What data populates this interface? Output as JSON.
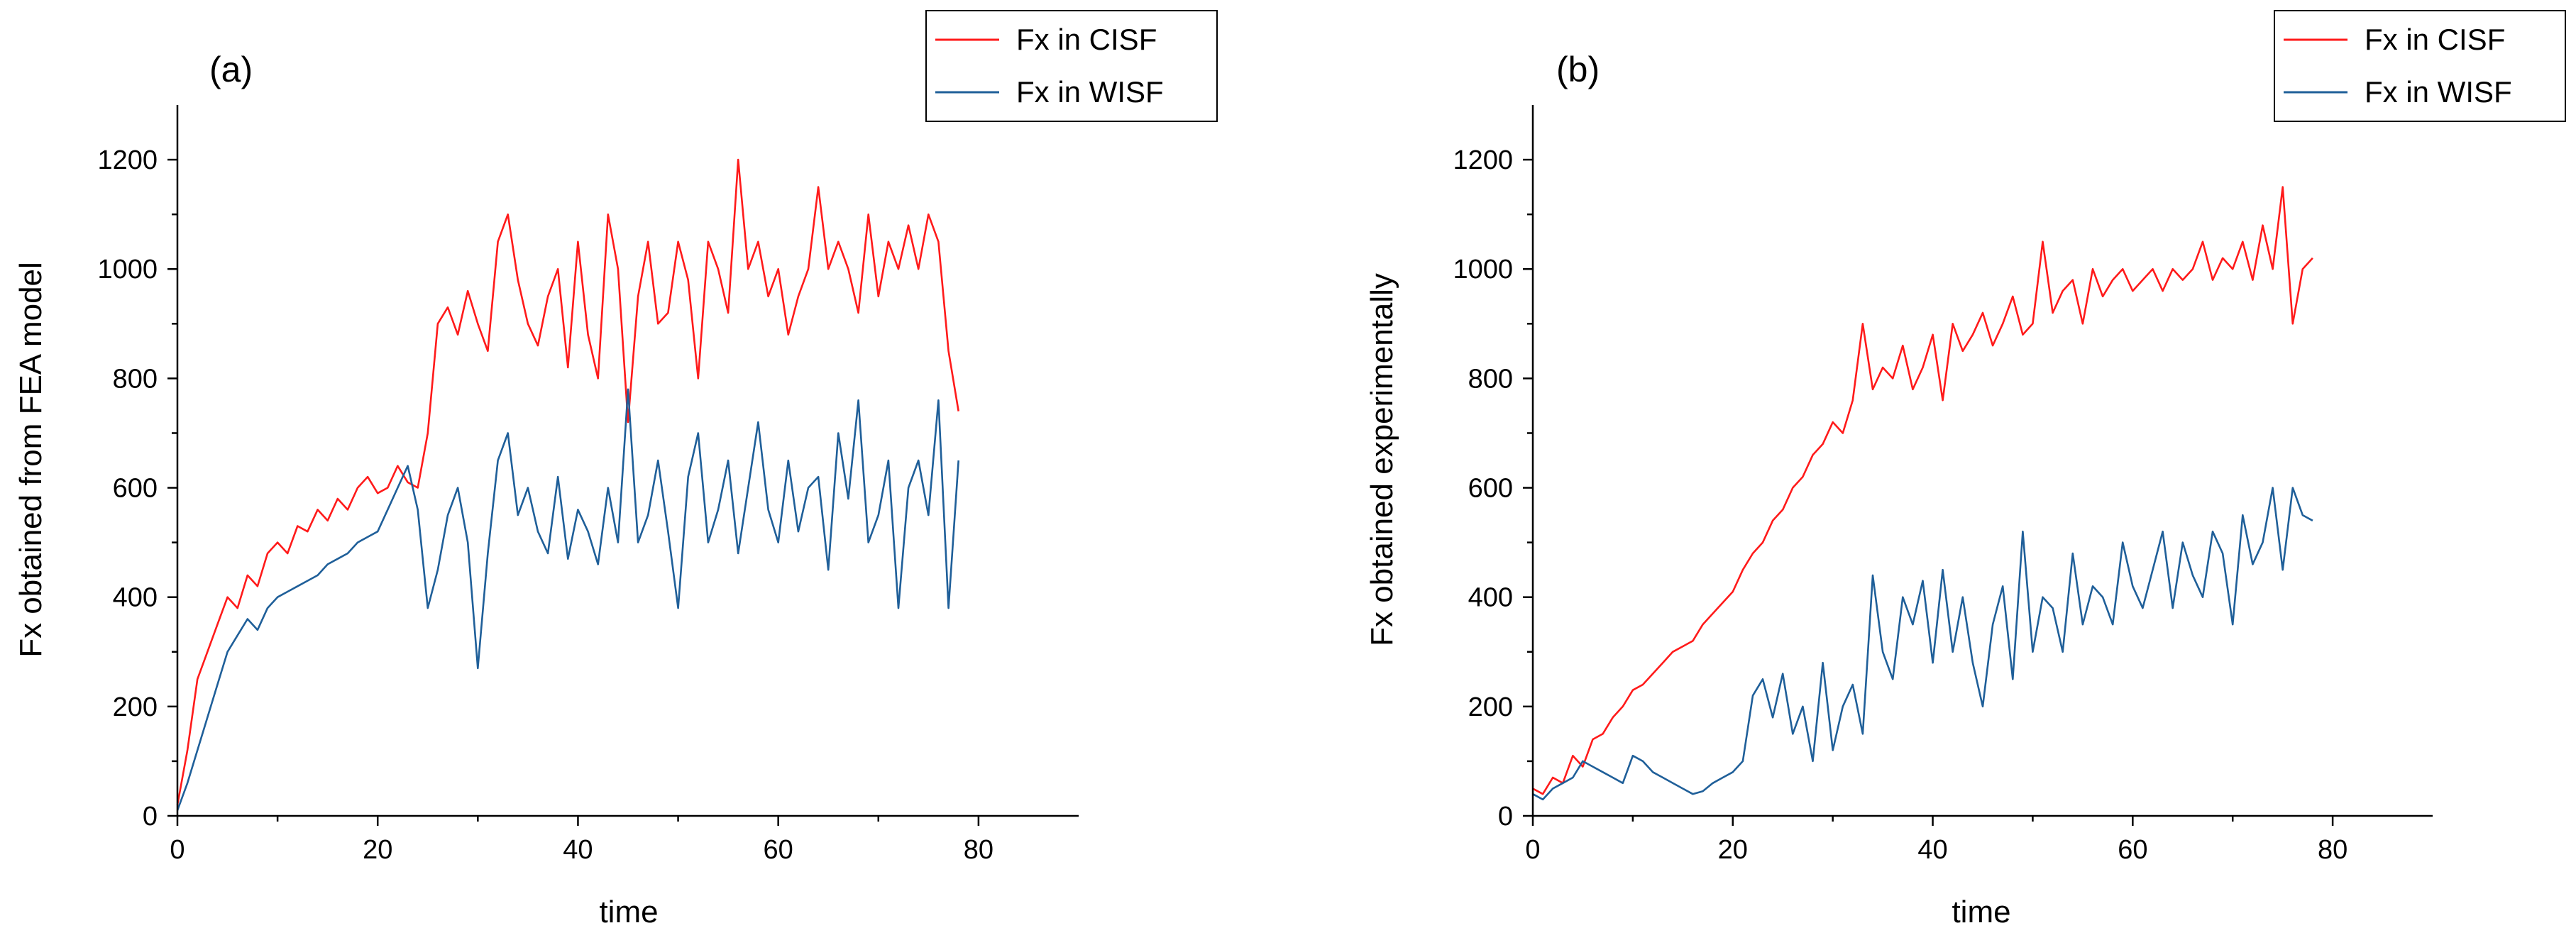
{
  "colors": {
    "cisf": "#ff1a1a",
    "wisf": "#1f5f99",
    "axis": "#000000",
    "background": "#ffffff"
  },
  "chart_data": [
    {
      "type": "line",
      "panel_label": "(a)",
      "title": "",
      "xlabel": "time",
      "ylabel": "Fx obtained from FEA model",
      "xlim": [
        0,
        90
      ],
      "ylim": [
        0,
        1300
      ],
      "xticks": [
        0,
        20,
        40,
        60,
        80
      ],
      "yticks": [
        0,
        200,
        400,
        600,
        800,
        1000,
        1200
      ],
      "grid": false,
      "legend_position": "top-right",
      "series": [
        {
          "name": "Fx in CISF",
          "color_key": "cisf",
          "x": [
            0,
            1,
            2,
            3,
            4,
            5,
            6,
            7,
            8,
            9,
            10,
            11,
            12,
            13,
            14,
            15,
            16,
            17,
            18,
            19,
            20,
            21,
            22,
            23,
            24,
            25,
            26,
            27,
            28,
            29,
            30,
            31,
            32,
            33,
            34,
            35,
            36,
            37,
            38,
            39,
            40,
            41,
            42,
            43,
            44,
            45,
            46,
            47,
            48,
            49,
            50,
            51,
            52,
            53,
            54,
            55,
            56,
            57,
            58,
            59,
            60,
            61,
            62,
            63,
            64,
            65,
            66,
            67,
            68,
            69,
            70,
            71,
            72,
            73,
            74,
            75,
            76,
            77,
            78
          ],
          "values": [
            20,
            120,
            250,
            300,
            350,
            400,
            380,
            440,
            420,
            480,
            500,
            480,
            530,
            520,
            560,
            540,
            580,
            560,
            600,
            620,
            590,
            600,
            640,
            610,
            600,
            700,
            900,
            930,
            880,
            960,
            900,
            850,
            1050,
            1100,
            980,
            900,
            860,
            950,
            1000,
            820,
            1050,
            880,
            800,
            1100,
            1000,
            720,
            950,
            1050,
            900,
            920,
            1050,
            980,
            800,
            1050,
            1000,
            920,
            1200,
            1000,
            1050,
            950,
            1000,
            880,
            950,
            1000,
            1150,
            1000,
            1050,
            1000,
            920,
            1100,
            950,
            1050,
            1000,
            1080,
            1000,
            1100,
            1050,
            850,
            740
          ]
        },
        {
          "name": "Fx in WISF",
          "color_key": "wisf",
          "x": [
            0,
            1,
            2,
            3,
            4,
            5,
            6,
            7,
            8,
            9,
            10,
            11,
            12,
            13,
            14,
            15,
            16,
            17,
            18,
            19,
            20,
            21,
            22,
            23,
            24,
            25,
            26,
            27,
            28,
            29,
            30,
            31,
            32,
            33,
            34,
            35,
            36,
            37,
            38,
            39,
            40,
            41,
            42,
            43,
            44,
            45,
            46,
            47,
            48,
            49,
            50,
            51,
            52,
            53,
            54,
            55,
            56,
            57,
            58,
            59,
            60,
            61,
            62,
            63,
            64,
            65,
            66,
            67,
            68,
            69,
            70,
            71,
            72,
            73,
            74,
            75,
            76,
            77,
            78
          ],
          "values": [
            10,
            60,
            120,
            180,
            240,
            300,
            330,
            360,
            340,
            380,
            400,
            410,
            420,
            430,
            440,
            460,
            470,
            480,
            500,
            510,
            520,
            560,
            600,
            640,
            560,
            380,
            450,
            550,
            600,
            500,
            270,
            480,
            650,
            700,
            550,
            600,
            520,
            480,
            620,
            470,
            560,
            520,
            460,
            600,
            500,
            780,
            500,
            550,
            650,
            520,
            380,
            620,
            700,
            500,
            560,
            650,
            480,
            600,
            720,
            560,
            500,
            650,
            520,
            600,
            620,
            450,
            700,
            580,
            760,
            500,
            550,
            650,
            380,
            600,
            650,
            550,
            760,
            380,
            650
          ]
        }
      ]
    },
    {
      "type": "line",
      "panel_label": "(b)",
      "title": "",
      "xlabel": "time",
      "ylabel": "Fx obtained experimentally",
      "xlim": [
        0,
        90
      ],
      "ylim": [
        0,
        1300
      ],
      "xticks": [
        0,
        20,
        40,
        60,
        80
      ],
      "yticks": [
        0,
        200,
        400,
        600,
        800,
        1000,
        1200
      ],
      "grid": false,
      "legend_position": "top-right",
      "series": [
        {
          "name": "Fx in CISF",
          "color_key": "cisf",
          "x": [
            0,
            1,
            2,
            3,
            4,
            5,
            6,
            7,
            8,
            9,
            10,
            11,
            12,
            13,
            14,
            15,
            16,
            17,
            18,
            19,
            20,
            21,
            22,
            23,
            24,
            25,
            26,
            27,
            28,
            29,
            30,
            31,
            32,
            33,
            34,
            35,
            36,
            37,
            38,
            39,
            40,
            41,
            42,
            43,
            44,
            45,
            46,
            47,
            48,
            49,
            50,
            51,
            52,
            53,
            54,
            55,
            56,
            57,
            58,
            59,
            60,
            61,
            62,
            63,
            64,
            65,
            66,
            67,
            68,
            69,
            70,
            71,
            72,
            73,
            74,
            75,
            76,
            77,
            78
          ],
          "values": [
            50,
            40,
            70,
            60,
            110,
            90,
            140,
            150,
            180,
            200,
            230,
            240,
            260,
            280,
            300,
            310,
            320,
            350,
            370,
            390,
            410,
            450,
            480,
            500,
            540,
            560,
            600,
            620,
            660,
            680,
            720,
            700,
            760,
            900,
            780,
            820,
            800,
            860,
            780,
            820,
            880,
            760,
            900,
            850,
            880,
            920,
            860,
            900,
            950,
            880,
            900,
            1050,
            920,
            960,
            980,
            900,
            1000,
            950,
            980,
            1000,
            960,
            980,
            1000,
            960,
            1000,
            980,
            1000,
            1050,
            980,
            1020,
            1000,
            1050,
            980,
            1080,
            1000,
            1150,
            900,
            1000,
            1020
          ]
        },
        {
          "name": "Fx in WISF",
          "color_key": "wisf",
          "x": [
            0,
            1,
            2,
            3,
            4,
            5,
            6,
            7,
            8,
            9,
            10,
            11,
            12,
            13,
            14,
            15,
            16,
            17,
            18,
            19,
            20,
            21,
            22,
            23,
            24,
            25,
            26,
            27,
            28,
            29,
            30,
            31,
            32,
            33,
            34,
            35,
            36,
            37,
            38,
            39,
            40,
            41,
            42,
            43,
            44,
            45,
            46,
            47,
            48,
            49,
            50,
            51,
            52,
            53,
            54,
            55,
            56,
            57,
            58,
            59,
            60,
            61,
            62,
            63,
            64,
            65,
            66,
            67,
            68,
            69,
            70,
            71,
            72,
            73,
            74,
            75,
            76,
            77,
            78
          ],
          "values": [
            40,
            30,
            50,
            60,
            70,
            100,
            90,
            80,
            70,
            60,
            110,
            100,
            80,
            70,
            60,
            50,
            40,
            45,
            60,
            70,
            80,
            100,
            220,
            250,
            180,
            260,
            150,
            200,
            100,
            280,
            120,
            200,
            240,
            150,
            440,
            300,
            250,
            400,
            350,
            430,
            280,
            450,
            300,
            400,
            280,
            200,
            350,
            420,
            250,
            520,
            300,
            400,
            380,
            300,
            480,
            350,
            420,
            400,
            350,
            500,
            420,
            380,
            450,
            520,
            380,
            500,
            440,
            400,
            520,
            480,
            350,
            550,
            460,
            500,
            600,
            450,
            600,
            550,
            540
          ]
        }
      ]
    }
  ]
}
